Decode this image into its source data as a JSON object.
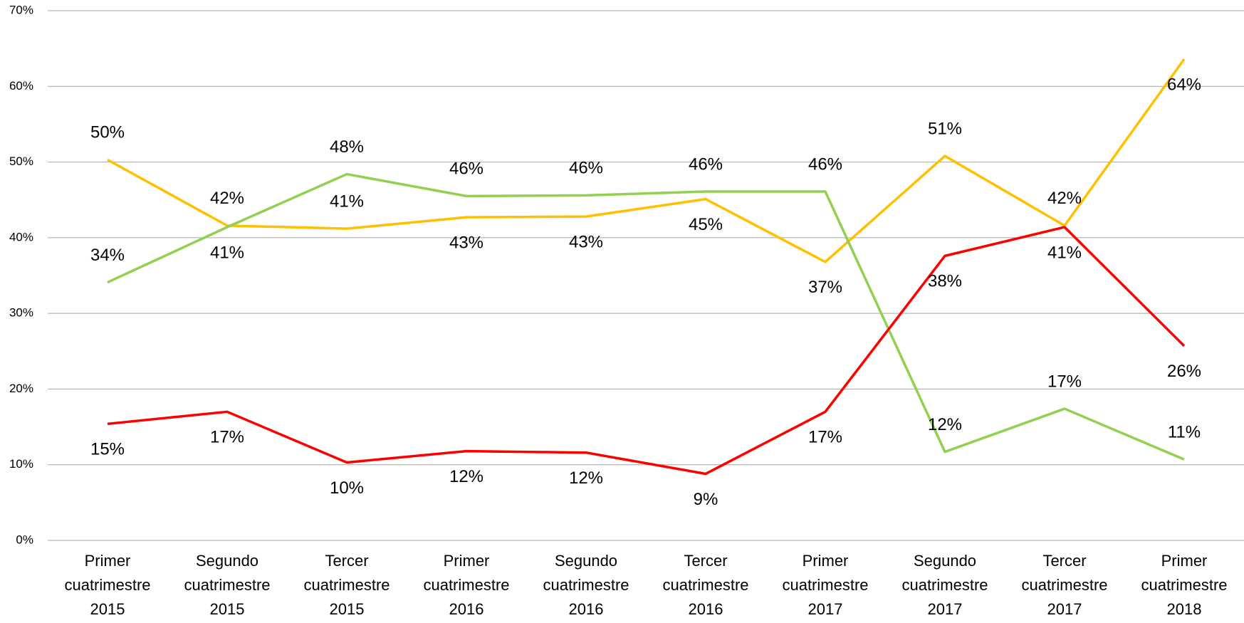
{
  "chart_data": {
    "type": "line",
    "categories": [
      "Primer cuatrimestre 2015",
      "Segundo cuatrimestre 2015",
      "Tercer cuatrimestre 2015",
      "Primer cuatrimestre 2016",
      "Segundo cuatrimestre 2016",
      "Tercer cuatrimestre 2016",
      "Primer cuatrimestre 2017",
      "Segundo cuatrimestre 2017",
      "Tercer cuatrimestre 2017",
      "Primer cuatrimestre 2018"
    ],
    "series": [
      {
        "color": "#FFC000",
        "values": [
          50.3,
          41.6,
          41.2,
          42.7,
          42.8,
          45.1,
          36.8,
          50.8,
          41.6,
          63.6
        ],
        "value_labels": [
          "50%",
          "42%",
          "41%",
          "43%",
          "43%",
          "45%",
          "37%",
          "51%",
          "42%",
          "64%"
        ]
      },
      {
        "color": "#92D050",
        "values": [
          34.1,
          41.4,
          48.4,
          45.5,
          45.6,
          46.1,
          46.1,
          11.7,
          17.4,
          10.7
        ],
        "value_labels": [
          "34%",
          "41%",
          "48%",
          "46%",
          "46%",
          "46%",
          "46%",
          "12%",
          "17%",
          "11%"
        ]
      },
      {
        "color": "#FF0000",
        "values": [
          15.4,
          17.0,
          10.3,
          11.8,
          11.6,
          8.8,
          17.0,
          37.6,
          41.4,
          25.7
        ],
        "value_labels": [
          "15%",
          "17%",
          "10%",
          "12%",
          "12%",
          "9%",
          "17%",
          "38%",
          "41%",
          "26%"
        ]
      }
    ],
    "ylim": [
      0,
      70
    ],
    "yticks": [
      {
        "value": 0,
        "label": "0%"
      },
      {
        "value": 10,
        "label": "10%"
      },
      {
        "value": 20,
        "label": "20%"
      },
      {
        "value": 30,
        "label": "30%"
      },
      {
        "value": 40,
        "label": "40%"
      },
      {
        "value": 50,
        "label": "50%"
      },
      {
        "value": 60,
        "label": "60%"
      },
      {
        "value": 70,
        "label": "70%"
      }
    ],
    "grid": true
  }
}
